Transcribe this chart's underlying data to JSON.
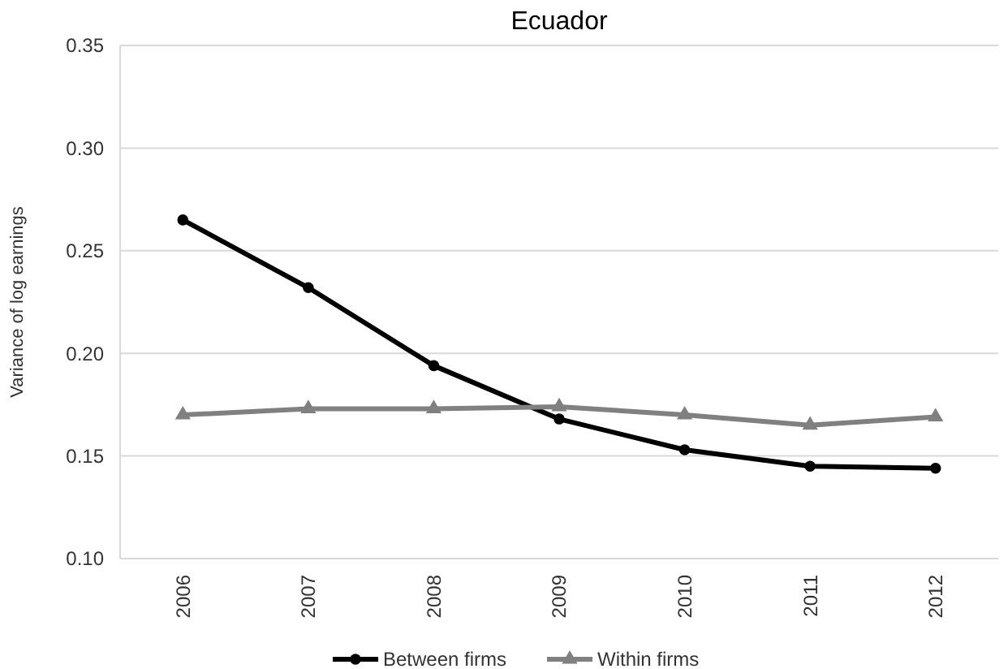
{
  "chart_data": {
    "type": "line",
    "title": "Ecuador",
    "ylabel": "Variance of log earnings",
    "categories": [
      "2006",
      "2007",
      "2008",
      "2009",
      "2010",
      "2011",
      "2012"
    ],
    "series": [
      {
        "name": "Between firms",
        "color": "#000000",
        "marker": "circle",
        "values": [
          0.265,
          0.232,
          0.194,
          0.168,
          0.153,
          0.145,
          0.144
        ]
      },
      {
        "name": "Within firms",
        "color": "#808080",
        "marker": "triangle",
        "values": [
          0.17,
          0.173,
          0.173,
          0.174,
          0.17,
          0.165,
          0.169
        ]
      }
    ],
    "ylim": [
      0.1,
      0.35
    ],
    "yticks": [
      {
        "value": 0.1,
        "label": "0.10"
      },
      {
        "value": 0.15,
        "label": "0.15"
      },
      {
        "value": 0.2,
        "label": "0.20"
      },
      {
        "value": 0.25,
        "label": "0.25"
      },
      {
        "value": 0.3,
        "label": "0.30"
      },
      {
        "value": 0.35,
        "label": "0.35"
      }
    ],
    "grid": "y",
    "legend": "bottom",
    "line_style": "solid"
  }
}
